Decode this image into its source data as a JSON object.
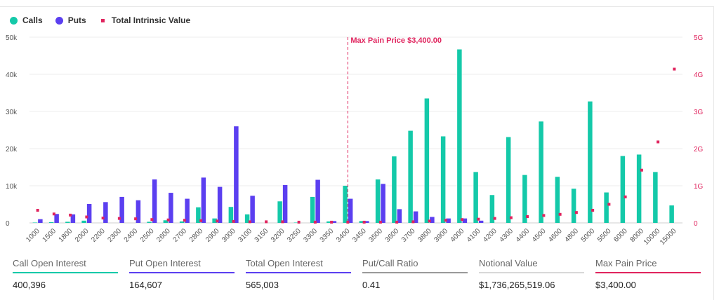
{
  "legend": {
    "calls": "Calls",
    "puts": "Puts",
    "intrinsic": "Total Intrinsic Value"
  },
  "colors": {
    "calls": "#14c9a9",
    "puts": "#5b3ff0",
    "intrinsic": "#e0245e",
    "notional": "#d8d8d8",
    "ratio": "#9a9a9a"
  },
  "chart_data": {
    "type": "bar",
    "categories": [
      "1000",
      "1500",
      "1800",
      "2000",
      "2200",
      "2300",
      "2400",
      "2500",
      "2600",
      "2700",
      "2800",
      "2900",
      "3000",
      "3100",
      "3150",
      "3200",
      "3250",
      "3300",
      "3350",
      "3400",
      "3450",
      "3500",
      "3600",
      "3700",
      "3800",
      "3900",
      "4000",
      "4100",
      "4200",
      "4300",
      "4400",
      "4500",
      "4600",
      "4800",
      "5000",
      "5500",
      "6000",
      "8000",
      "10000",
      "15000"
    ],
    "series": [
      {
        "name": "Calls",
        "axis": "left",
        "values": [
          100,
          200,
          300,
          600,
          0,
          0,
          0,
          300,
          700,
          400,
          4200,
          1200,
          4300,
          2300,
          0,
          5800,
          100,
          7000,
          400,
          10000,
          500,
          11700,
          17900,
          24800,
          33500,
          23300,
          46700,
          13700,
          7500,
          23100,
          12900,
          27300,
          12400,
          9200,
          32700,
          8200,
          18000,
          18400,
          13700,
          4700
        ]
      },
      {
        "name": "Puts",
        "axis": "left",
        "values": [
          1000,
          2400,
          2300,
          5100,
          5600,
          7000,
          6100,
          11700,
          8100,
          6500,
          12200,
          9700,
          26000,
          7300,
          0,
          10200,
          0,
          11600,
          500,
          6500,
          500,
          10500,
          3700,
          3100,
          1600,
          1200,
          1200,
          600,
          0,
          0,
          0,
          0,
          0,
          0,
          0,
          0,
          0,
          0,
          0,
          0
        ]
      },
      {
        "name": "Total Intrinsic Value",
        "axis": "right",
        "values": [
          0.34,
          0.24,
          0.21,
          0.16,
          0.13,
          0.12,
          0.11,
          0.09,
          0.08,
          0.07,
          0.06,
          0.05,
          0.04,
          0.03,
          0.03,
          0.03,
          0.02,
          0.02,
          0.02,
          0.02,
          0.02,
          0.02,
          0.02,
          0.03,
          0.05,
          0.07,
          0.09,
          0.1,
          0.12,
          0.14,
          0.17,
          0.2,
          0.23,
          0.28,
          0.34,
          0.5,
          0.7,
          1.42,
          2.18,
          4.14
        ]
      }
    ],
    "y_left": {
      "min": 0,
      "max": 50000,
      "ticks": [
        0,
        10000,
        20000,
        30000,
        40000,
        50000
      ],
      "tick_labels": [
        "0",
        "10k",
        "20k",
        "30k",
        "40k",
        "50k"
      ]
    },
    "y_right": {
      "min": 0,
      "max": 5,
      "ticks": [
        0,
        1,
        2,
        3,
        4,
        5
      ],
      "tick_labels": [
        "0",
        "1G",
        "2G",
        "3G",
        "4G",
        "5G"
      ]
    },
    "max_pain": {
      "category": "3400",
      "label": "Max Pain Price $3,400.00"
    },
    "grid": true,
    "legend_position": "top-left"
  },
  "stats": [
    {
      "label": "Call Open Interest",
      "value": "400,396",
      "color": "#14c9a9"
    },
    {
      "label": "Put Open Interest",
      "value": "164,607",
      "color": "#5b3ff0"
    },
    {
      "label": "Total Open Interest",
      "value": "565,003",
      "color": "#5b3ff0"
    },
    {
      "label": "Put/Call Ratio",
      "value": "0.41",
      "color": "#9a9a9a"
    },
    {
      "label": "Notional Value",
      "value": "$1,736,265,519.06",
      "color": "#d8d8d8"
    },
    {
      "label": "Max Pain Price",
      "value": "$3,400.00",
      "color": "#e0245e"
    }
  ]
}
